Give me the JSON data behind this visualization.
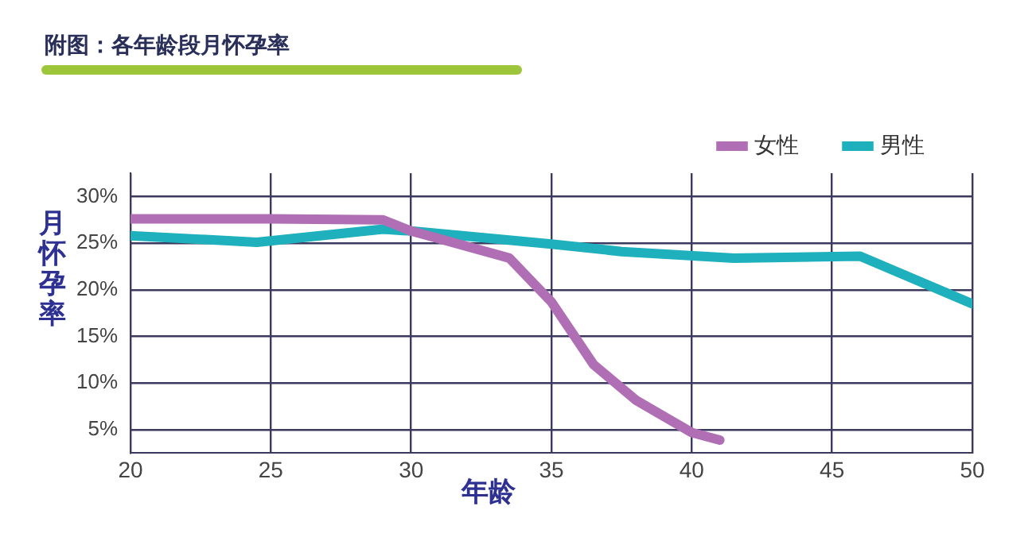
{
  "chart_data": {
    "type": "line",
    "title": "附图：各年龄段月怀孕率",
    "xlabel": "年龄",
    "ylabel": "月怀孕率",
    "xlim": [
      20,
      50
    ],
    "xticks": [
      20,
      25,
      30,
      35,
      40,
      45,
      50
    ],
    "ylim": [
      2.5,
      32.5
    ],
    "yticks": [
      {
        "value": 5,
        "label": "5%"
      },
      {
        "value": 10,
        "label": "10%"
      },
      {
        "value": 15,
        "label": "15%"
      },
      {
        "value": 20,
        "label": "20%"
      },
      {
        "value": 25,
        "label": "25%"
      },
      {
        "value": 30,
        "label": "30%"
      }
    ],
    "series": [
      {
        "name": "女性",
        "color": "#b06fb4",
        "x": [
          20,
          25,
          29,
          30,
          33.5,
          35,
          36.5,
          38,
          40,
          41
        ],
        "values": [
          27.6,
          27.6,
          27.5,
          26.3,
          23.4,
          18.7,
          12,
          8.2,
          4.7,
          3.9
        ]
      },
      {
        "name": "男性",
        "color": "#1fb0bd",
        "x": [
          20,
          24.5,
          29,
          30,
          35,
          37.5,
          41.5,
          46,
          50
        ],
        "values": [
          25.8,
          25.1,
          26.5,
          26.3,
          24.9,
          24.1,
          23.4,
          23.6,
          18.5
        ]
      }
    ],
    "grid": true,
    "legend": "top right",
    "marker": "none",
    "line_style": "solid"
  }
}
